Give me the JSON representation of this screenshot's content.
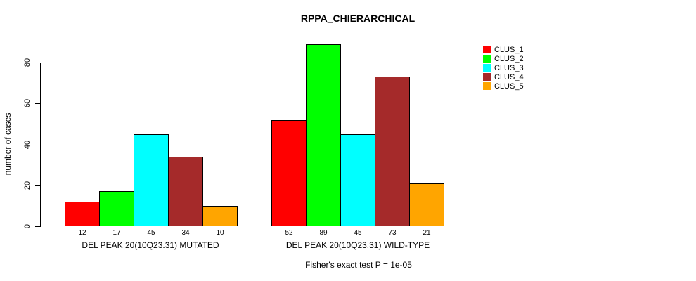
{
  "chart_data": {
    "type": "bar",
    "title": "RPPA_CHIERARCHICAL",
    "ylabel": "number of cases",
    "xlabel": "",
    "yticks": [
      0,
      20,
      40,
      60,
      80
    ],
    "ylim": [
      0,
      89
    ],
    "grid": false,
    "legend_position": "top-right",
    "bar_border_color": "#000000",
    "text_color": "#000000",
    "series": [
      {
        "name": "CLUS_1",
        "color": "#FF0000"
      },
      {
        "name": "CLUS_2",
        "color": "#00FF00"
      },
      {
        "name": "CLUS_3",
        "color": "#00FFFF"
      },
      {
        "name": "CLUS_4",
        "color": "#A52A2A"
      },
      {
        "name": "CLUS_5",
        "color": "#FFA500"
      }
    ],
    "groups": [
      {
        "label": "DEL PEAK 20(10Q23.31) MUTATED",
        "values": [
          12,
          17,
          45,
          34,
          10
        ]
      },
      {
        "label": "DEL PEAK 20(10Q23.31) WILD-TYPE",
        "values": [
          52,
          89,
          45,
          73,
          21
        ]
      }
    ],
    "footnote": "Fisher's exact test P = 1e-05"
  }
}
